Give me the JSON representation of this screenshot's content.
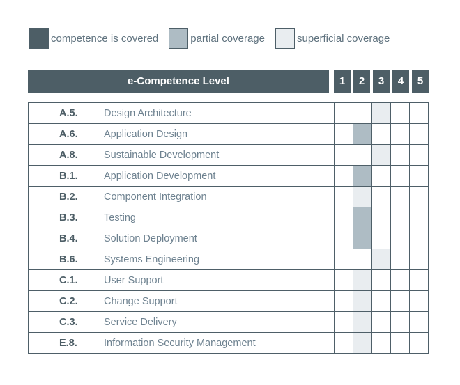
{
  "colors": {
    "covered": "#4d5e66",
    "partial": "#aebcc4",
    "superficial": "#e9edf0",
    "border": "#4e5f68",
    "header_bg": "#4d5e66",
    "header_text": "#ffffff",
    "code_text": "#4d5e66",
    "name_text": "#6e8290",
    "legend_text": "#5f727e"
  },
  "legend": {
    "items": [
      {
        "label": "competence is covered",
        "coverage": "covered"
      },
      {
        "label": "partial coverage",
        "coverage": "partial"
      },
      {
        "label": "superficial coverage",
        "coverage": "superficial"
      }
    ]
  },
  "header": {
    "title": "e-Competence Level",
    "levels": [
      "1",
      "2",
      "3",
      "4",
      "5"
    ]
  },
  "chart_data": {
    "type": "heatmap",
    "title": "e-Competence Level",
    "columns": [
      "1",
      "2",
      "3",
      "4",
      "5"
    ],
    "legend_entries": [
      "competence is covered",
      "partial coverage",
      "superficial coverage"
    ],
    "rows": [
      {
        "code": "A.5.",
        "name": "Design Architecture",
        "level": 3,
        "coverage": "superficial"
      },
      {
        "code": "A.6.",
        "name": "Application Design",
        "level": 2,
        "coverage": "partial"
      },
      {
        "code": "A.8.",
        "name": "Sustainable Development",
        "level": 3,
        "coverage": "superficial"
      },
      {
        "code": "B.1.",
        "name": "Application Development",
        "level": 2,
        "coverage": "partial"
      },
      {
        "code": "B.2.",
        "name": "Component Integration",
        "level": 2,
        "coverage": "superficial"
      },
      {
        "code": "B.3.",
        "name": "Testing",
        "level": 2,
        "coverage": "partial"
      },
      {
        "code": "B.4.",
        "name": "Solution Deployment",
        "level": 2,
        "coverage": "partial"
      },
      {
        "code": "B.6.",
        "name": "Systems Engineering",
        "level": 3,
        "coverage": "superficial"
      },
      {
        "code": "C.1.",
        "name": "User Support",
        "level": 2,
        "coverage": "superficial"
      },
      {
        "code": "C.2.",
        "name": "Change Support",
        "level": 2,
        "coverage": "superficial"
      },
      {
        "code": "C.3.",
        "name": "Service Delivery",
        "level": 2,
        "coverage": "superficial"
      },
      {
        "code": "E.8.",
        "name": "Information Security Management",
        "level": 2,
        "coverage": "superficial"
      }
    ]
  }
}
